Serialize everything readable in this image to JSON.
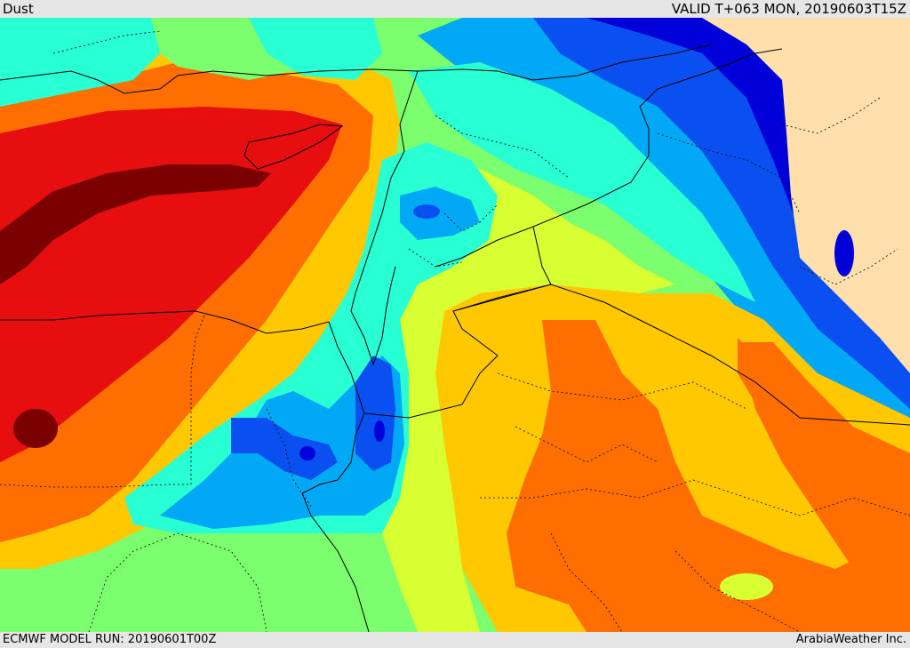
{
  "header": {
    "title": "Dust",
    "valid_time": "VALID T+063 MON, 20190603T15Z"
  },
  "footer": {
    "model_run": "ECMWF MODEL RUN: 20190601T00Z",
    "credit": "ArabiaWeather Inc."
  },
  "map": {
    "field": "dust concentration",
    "region": "Eastern Mediterranean / Levant / Northern Arabia",
    "colors": {
      "land_bg": "#ffdfab",
      "level_0": "#0000d8",
      "level_1": "#0a50f0",
      "level_2": "#00a8f5",
      "level_3": "#28ffd2",
      "level_4": "#7cff6e",
      "level_5": "#d7ff32",
      "level_6": "#ffc800",
      "level_7": "#ff6e00",
      "level_8": "#e60e0e",
      "level_9": "#7b0000",
      "borders": "#000000"
    }
  }
}
